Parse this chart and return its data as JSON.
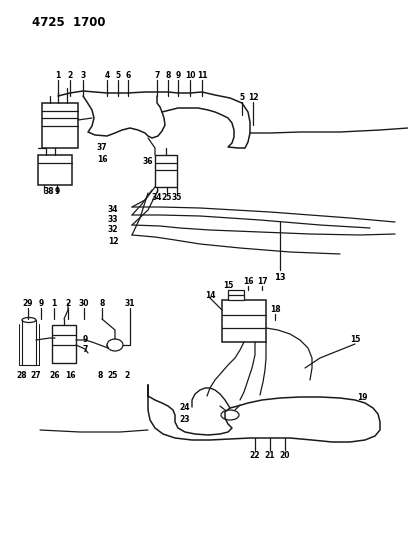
{
  "title": "4725  1700",
  "bg": "#ffffff",
  "lc": "#1a1a1a",
  "tc": "#000000",
  "figsize": [
    4.08,
    5.33
  ],
  "dpi": 100
}
